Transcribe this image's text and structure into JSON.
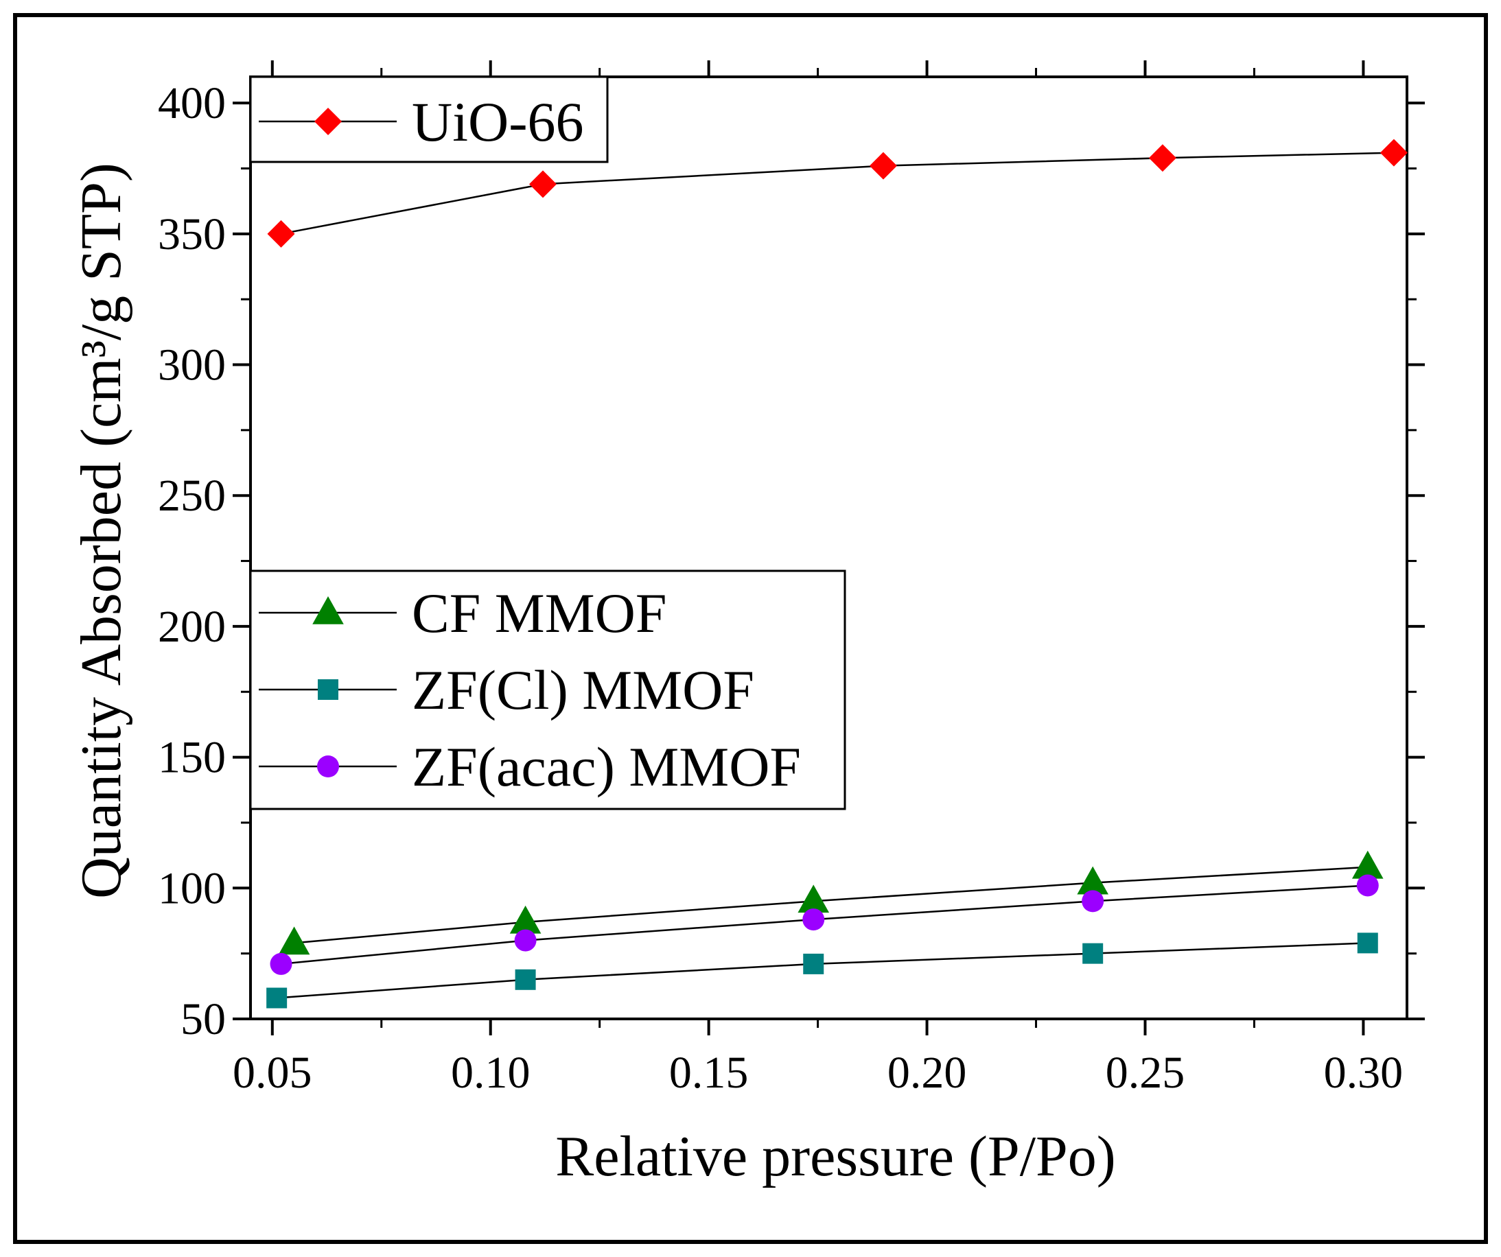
{
  "chart_data": {
    "type": "line",
    "title": "",
    "xlabel": "Relative pressure (P/Po)",
    "ylabel": "Quantity Absorbed (cm³/g STP)",
    "xlim": [
      0.045,
      0.31
    ],
    "ylim": [
      50,
      410
    ],
    "x_ticks": [
      "0.05",
      "0.10",
      "0.15",
      "0.20",
      "0.25",
      "0.30"
    ],
    "y_ticks": [
      "50",
      "100",
      "150",
      "200",
      "250",
      "300",
      "350",
      "400"
    ],
    "grid": false,
    "series": [
      {
        "name": "UiO-66",
        "marker": "diamond",
        "color": "#ff0000",
        "x": [
          0.052,
          0.112,
          0.19,
          0.254,
          0.307
        ],
        "y": [
          350,
          369,
          376,
          379,
          381
        ]
      },
      {
        "name": "CF MMOF",
        "marker": "triangle",
        "color": "#008000",
        "x": [
          0.055,
          0.108,
          0.174,
          0.238,
          0.301
        ],
        "y": [
          79,
          87,
          95,
          102,
          108
        ]
      },
      {
        "name": "ZF(Cl) MMOF",
        "marker": "square",
        "color": "#008080",
        "x": [
          0.051,
          0.108,
          0.174,
          0.238,
          0.301
        ],
        "y": [
          58,
          65,
          71,
          75,
          79
        ]
      },
      {
        "name": "ZF(acac) MMOF",
        "marker": "circle",
        "color": "#9b00ff",
        "x": [
          0.052,
          0.108,
          0.174,
          0.238,
          0.301
        ],
        "y": [
          71,
          80,
          88,
          95,
          101
        ]
      }
    ],
    "legends": [
      {
        "position": "top-left",
        "entries": [
          "UiO-66"
        ]
      },
      {
        "position": "middle-left",
        "entries": [
          "CF MMOF",
          "ZF(Cl) MMOF",
          "ZF(acac) MMOF"
        ]
      }
    ]
  }
}
